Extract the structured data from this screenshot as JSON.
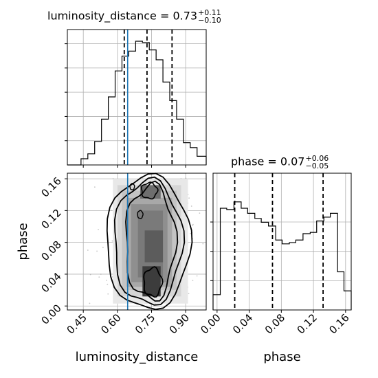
{
  "chart_data": {
    "type": "corner",
    "parameters": [
      "luminosity_distance",
      "phase"
    ],
    "injection": {
      "luminosity_distance": 0.645,
      "color": "#1f77b4"
    },
    "panels": {
      "luminosity_distance_hist": {
        "title": {
          "prefix": "luminosity_distance = 0.73",
          "plus": "+0.11",
          "minus": "−0.10"
        },
        "quantiles": [
          0.63,
          0.73,
          0.84
        ],
        "xlim": [
          0.38,
          0.99
        ],
        "bin_edges": [
          0.38,
          0.41,
          0.44,
          0.47,
          0.5,
          0.53,
          0.56,
          0.59,
          0.62,
          0.65,
          0.68,
          0.71,
          0.74,
          0.77,
          0.8,
          0.83,
          0.86,
          0.89,
          0.92,
          0.95,
          0.99
        ],
        "counts": [
          0,
          0,
          0.05,
          0.09,
          0.19,
          0.37,
          0.55,
          0.76,
          0.88,
          0.92,
          1.0,
          0.99,
          0.93,
          0.85,
          0.67,
          0.52,
          0.37,
          0.18,
          0.14,
          0.07
        ]
      },
      "phase_hist": {
        "title": {
          "prefix": "phase = 0.07",
          "plus": "+0.06",
          "minus": "−0.05"
        },
        "quantiles": [
          0.022,
          0.069,
          0.132
        ],
        "xlim": [
          -0.005,
          0.167
        ],
        "bin_edges": [
          -0.005,
          0.004,
          0.012,
          0.021,
          0.03,
          0.038,
          0.047,
          0.055,
          0.064,
          0.073,
          0.081,
          0.09,
          0.098,
          0.107,
          0.116,
          0.124,
          0.133,
          0.141,
          0.15,
          0.158,
          0.167
        ],
        "counts": [
          0.12,
          0.8,
          0.79,
          0.85,
          0.8,
          0.76,
          0.72,
          0.69,
          0.66,
          0.55,
          0.52,
          0.53,
          0.55,
          0.6,
          0.61,
          0.7,
          0.73,
          0.76,
          0.3,
          0.15
        ]
      },
      "joint": {
        "xlabel": "luminosity_distance",
        "ylabel": "phase",
        "xlim": [
          0.38,
          0.99
        ],
        "ylim": [
          -0.005,
          0.167
        ],
        "xticks": [
          0.45,
          0.6,
          0.75,
          0.9
        ],
        "xtick_labels": [
          "0.45",
          "0.60",
          "0.75",
          "0.90"
        ],
        "yticks": [
          0.0,
          0.04,
          0.08,
          0.12,
          0.16
        ],
        "ytick_labels": [
          "0.00",
          "0.04",
          "0.08",
          "0.12",
          "0.16"
        ]
      },
      "phase_axis": {
        "xlabel": "phase",
        "xticks": [
          0.0,
          0.04,
          0.08,
          0.12,
          0.16
        ],
        "xtick_labels": [
          "0.00",
          "0.04",
          "0.08",
          "0.12",
          "0.16"
        ]
      }
    },
    "grid": true
  }
}
